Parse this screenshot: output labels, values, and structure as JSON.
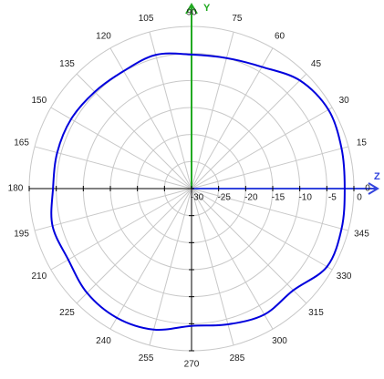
{
  "chart_data": {
    "type": "polar",
    "y_axis_label": "Y",
    "z_axis_label": "Z",
    "x": [
      0,
      15,
      30,
      45,
      60,
      75,
      90,
      105,
      120,
      135,
      150,
      165,
      180,
      195,
      210,
      225,
      240,
      255,
      270,
      285,
      300,
      315,
      330,
      345
    ],
    "series": [
      {
        "color": "#0000dd",
        "values": [
          -1.7,
          -1.3,
          -0.8,
          -1.7,
          -4.0,
          -5.0,
          -5.2,
          -4.4,
          -4.9,
          -4.7,
          -4.3,
          -4.3,
          -4.4,
          -3.4,
          -3.7,
          -2.7,
          -2.4,
          -3.0,
          -4.6,
          -4.0,
          -3.1,
          -3.4,
          -1.1,
          -1.3
        ]
      }
    ],
    "xticks": [
      0,
      15,
      30,
      45,
      60,
      75,
      90,
      105,
      120,
      135,
      150,
      165,
      180,
      195,
      210,
      225,
      240,
      255,
      270,
      285,
      300,
      315,
      330,
      345
    ],
    "ylim": [
      -30,
      0
    ],
    "yticks": [
      -30,
      -25,
      -20,
      -15,
      -10,
      -5,
      0
    ],
    "grid": true
  }
}
